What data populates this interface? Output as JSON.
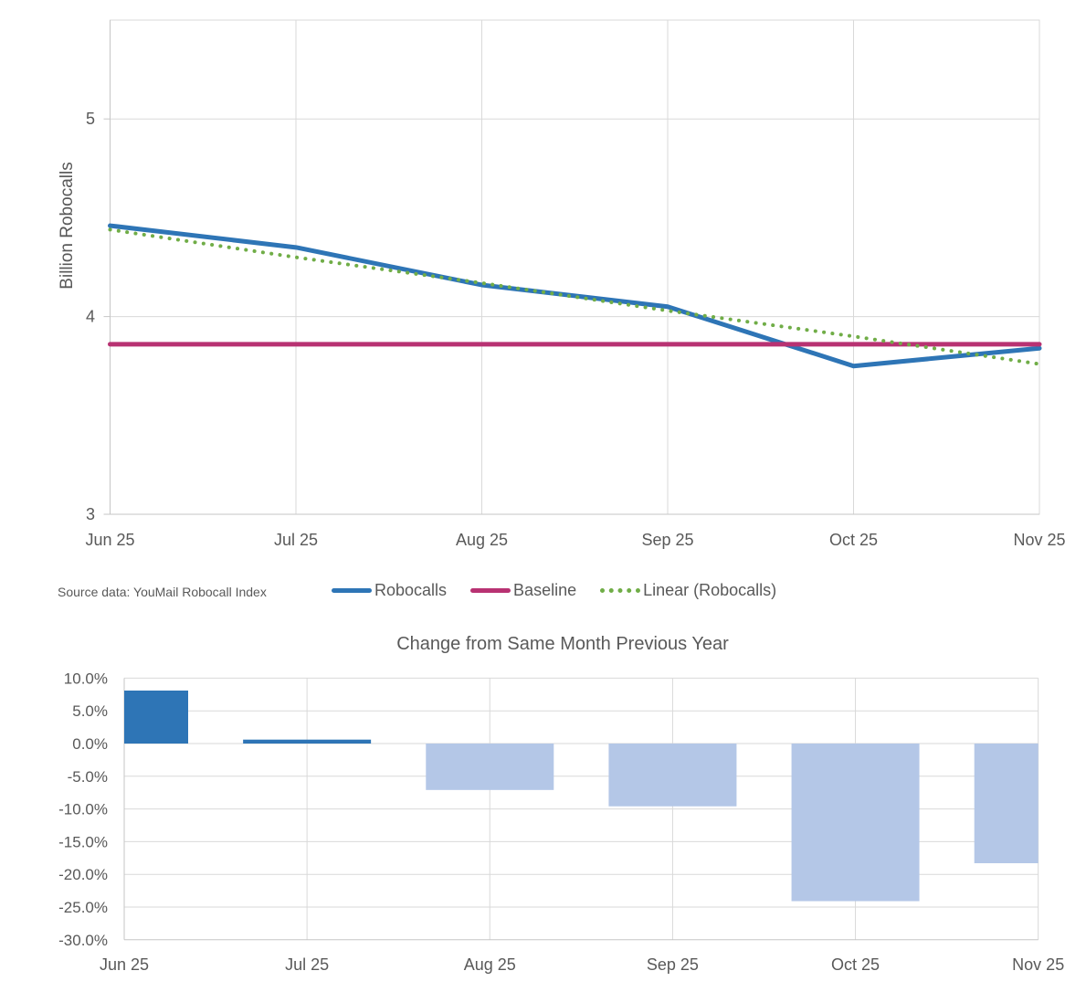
{
  "chart_data": [
    {
      "type": "line",
      "categories": [
        "Jun 25",
        "Jul 25",
        "Aug 25",
        "Sep 25",
        "Oct 25",
        "Nov 25"
      ],
      "series": [
        {
          "name": "Robocalls",
          "values": [
            4.46,
            4.35,
            4.16,
            4.05,
            3.75,
            3.84
          ],
          "color": "#2E75B6",
          "style": "solid"
        },
        {
          "name": "Baseline",
          "values": [
            3.86,
            3.86,
            3.86,
            3.86,
            3.86,
            3.86
          ],
          "color": "#B83272",
          "style": "solid"
        },
        {
          "name": "Linear (Robocalls)",
          "values": [
            4.44,
            4.3,
            4.17,
            4.03,
            3.9,
            3.76
          ],
          "color": "#70AD47",
          "style": "dotted"
        }
      ],
      "ylabel": "Billion Robocalls",
      "xlabel": "",
      "ylim": [
        3,
        5.5
      ],
      "yticks": [
        3,
        4,
        5
      ],
      "grid": true,
      "legend_position": "bottom",
      "source_note": "Source data: YouMail Robocall Index"
    },
    {
      "type": "bar",
      "title": "Change from Same Month Previous Year",
      "categories": [
        "Jun 25",
        "Jul 25",
        "Aug 25",
        "Sep 25",
        "Oct 25",
        "Nov 25"
      ],
      "values": [
        8.1,
        0.6,
        -7.1,
        -9.6,
        -24.1,
        -18.3
      ],
      "unit": "percent",
      "ylim": [
        -30,
        10
      ],
      "ytick_values": [
        10,
        5,
        0,
        -5,
        -10,
        -15,
        -20,
        -25,
        -30
      ],
      "ytick_labels": [
        "10.0%",
        "5.0%",
        "0.0%",
        "-5.0%",
        "-10.0%",
        "-15.0%",
        "-20.0%",
        "-25.0%",
        "-30.0%"
      ],
      "colors": {
        "positive": "#2E75B6",
        "negative": "#B4C7E7"
      },
      "grid": true
    }
  ],
  "style_colors": {
    "text": "#595959",
    "gridline": "#D9D9D9",
    "axis_line": "#C6C6C6"
  }
}
